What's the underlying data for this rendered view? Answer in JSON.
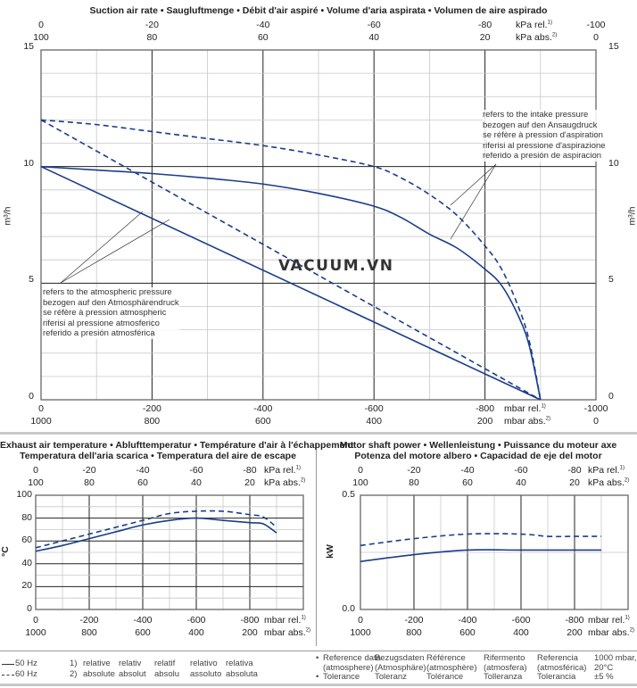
{
  "colors": {
    "curve": "#1a3c8c",
    "grid_minor": "#c8c8c8",
    "grid_major": "#222222",
    "separator": "#c8c8c8"
  },
  "watermark": "VACUUM.VN",
  "chart_data": [
    {
      "type": "line",
      "title": "Suction air rate  •  Saugluftmenge  •  Débit d'air aspiré  •  Volume d'aria aspirata  •  Volumen de aire aspirado",
      "ylabel": "m³/h",
      "ylim": [
        0,
        15
      ],
      "yticks": [
        "0",
        "5",
        "10",
        "15"
      ],
      "xlim": [
        0,
        -1000
      ],
      "x_axis_bottom": {
        "rel_ticks": [
          "0",
          "-200",
          "-400",
          "-600",
          "-800",
          "-1000"
        ],
        "abs_ticks": [
          "1000",
          "800",
          "600",
          "400",
          "200",
          "0"
        ],
        "rel_unit": "mbar rel.",
        "abs_unit": "mbar abs.",
        "rel_sup": "1)",
        "abs_sup": "2)"
      },
      "x_axis_top": {
        "rel_ticks": [
          "0",
          "-20",
          "-40",
          "-60",
          "-80",
          "-100"
        ],
        "abs_ticks": [
          "100",
          "80",
          "60",
          "40",
          "20",
          "0"
        ],
        "rel_unit": "kPa rel.",
        "abs_unit": "kPa abs.",
        "rel_sup": "1)",
        "abs_sup": "2)"
      },
      "grid": true,
      "annotations": {
        "intake": [
          "refers to the intake pressure",
          "bezogen auf den Ansaugdruck",
          "se réfère à pression d'aspiration",
          "riferisi al pressione d'aspirazione",
          "referido a presión de aspiracion"
        ],
        "atmospheric": [
          "refers to the atmospheric pressure",
          "bezogen auf den Atmosphärendruck",
          "se réfère à pression atmospheric",
          "riferisi al pressione atmosferico",
          "referido a presión atmosférica"
        ]
      },
      "series": [
        {
          "name": "50 Hz (intake pressure)",
          "style": "solid",
          "x": [
            0,
            -100,
            -200,
            -300,
            -400,
            -500,
            -600,
            -650,
            -700,
            -750,
            -800,
            -830,
            -860,
            -880,
            -900
          ],
          "y": [
            10,
            9.85,
            9.7,
            9.5,
            9.25,
            8.85,
            8.3,
            7.8,
            7.1,
            6.5,
            5.6,
            4.9,
            3.6,
            2.3,
            0
          ]
        },
        {
          "name": "60 Hz (intake pressure)",
          "style": "dashed",
          "x": [
            0,
            -100,
            -200,
            -300,
            -400,
            -500,
            -600,
            -650,
            -700,
            -750,
            -800,
            -830,
            -860,
            -880,
            -900
          ],
          "y": [
            12,
            11.8,
            11.5,
            11.2,
            10.9,
            10.5,
            10.0,
            9.5,
            8.8,
            7.9,
            6.6,
            5.6,
            4.0,
            2.5,
            0
          ]
        },
        {
          "name": "50 Hz (atmospheric pressure)",
          "style": "solid",
          "x": [
            0,
            -900
          ],
          "y": [
            10,
            0
          ]
        },
        {
          "name": "60 Hz (atmospheric pressure)",
          "style": "dashed",
          "x": [
            0,
            -900
          ],
          "y": [
            12,
            0
          ]
        }
      ]
    },
    {
      "type": "line",
      "title_lines": [
        "Exhaust air temperature  •  Ablufttemperatur  •  Température d'air à l'échappement",
        "Temperatura dell'aria scarica  •  Temperatura del aire de escape"
      ],
      "ylabel": "°C",
      "ylim": [
        0,
        100
      ],
      "yticks": [
        "0",
        "20",
        "40",
        "60",
        "80",
        "100"
      ],
      "xlim": [
        0,
        -1000
      ],
      "x_axis_bottom": {
        "rel_ticks": [
          "0",
          "-200",
          "-400",
          "-600",
          "-800"
        ],
        "abs_ticks": [
          "1000",
          "800",
          "600",
          "400",
          "200"
        ],
        "rel_unit": "mbar rel.",
        "abs_unit": "mbar abs.",
        "rel_sup": "1)",
        "abs_sup": "2)"
      },
      "x_axis_top": {
        "rel_ticks": [
          "0",
          "-20",
          "-40",
          "-60",
          "-80"
        ],
        "abs_ticks": [
          "100",
          "80",
          "60",
          "40",
          "20"
        ],
        "rel_unit": "kPa rel.",
        "abs_unit": "kPa abs.",
        "rel_sup": "1)",
        "abs_sup": "2)"
      },
      "grid": true,
      "series": [
        {
          "name": "50 Hz",
          "style": "solid",
          "x": [
            0,
            -100,
            -200,
            -300,
            -400,
            -500,
            -600,
            -700,
            -800,
            -850,
            -900
          ],
          "y": [
            51,
            56,
            62,
            68,
            74,
            78,
            80,
            78,
            76,
            75,
            67
          ]
        },
        {
          "name": "60 Hz",
          "style": "dashed",
          "x": [
            0,
            -100,
            -200,
            -300,
            -400,
            -500,
            -600,
            -700,
            -800,
            -850,
            -900
          ],
          "y": [
            54,
            60,
            66,
            72,
            78,
            84,
            86,
            86,
            83,
            81,
            72
          ]
        }
      ]
    },
    {
      "type": "line",
      "title_lines": [
        "Motor shaft power  •  Wellenleistung  •  Puissance du moteur axe",
        "Potenza del motore albero  •  Capacidad de eje del motor"
      ],
      "ylabel": "kW",
      "ylim": [
        0,
        0.5
      ],
      "yticks": [
        "0.0",
        "0.5"
      ],
      "xlim": [
        0,
        -1000
      ],
      "x_axis_bottom": {
        "rel_ticks": [
          "0",
          "-200",
          "-400",
          "-600",
          "-800"
        ],
        "abs_ticks": [
          "1000",
          "800",
          "600",
          "400",
          "200"
        ],
        "rel_unit": "mbar rel.",
        "abs_unit": "mbar abs.",
        "rel_sup": "1)",
        "abs_sup": "2)"
      },
      "x_axis_top": {
        "rel_ticks": [
          "0",
          "-20",
          "-40",
          "-60",
          "-80"
        ],
        "abs_ticks": [
          "100",
          "80",
          "60",
          "40",
          "20"
        ],
        "rel_unit": "kPa rel.",
        "abs_unit": "kPa abs.",
        "rel_sup": "1)",
        "abs_sup": "2)"
      },
      "grid": true,
      "series": [
        {
          "name": "50 Hz",
          "style": "solid",
          "x": [
            0,
            -200,
            -400,
            -600,
            -800,
            -900
          ],
          "y": [
            0.21,
            0.24,
            0.26,
            0.26,
            0.26,
            0.26
          ]
        },
        {
          "name": "60 Hz",
          "style": "dashed",
          "x": [
            0,
            -200,
            -400,
            -600,
            -700,
            -800,
            -900
          ],
          "y": [
            0.28,
            0.31,
            0.33,
            0.33,
            0.32,
            0.32,
            0.32
          ]
        }
      ]
    }
  ],
  "legend": {
    "series": [
      {
        "label": "50 Hz",
        "style": "solid"
      },
      {
        "label": "60 Hz",
        "style": "dashed"
      }
    ],
    "footnotes": [
      {
        "num": "1)",
        "words": [
          "relative",
          "relativ",
          "relatif",
          "relativo",
          "relativa"
        ]
      },
      {
        "num": "2)",
        "words": [
          "absolute",
          "absolut",
          "absolu",
          "assoluto",
          "absoluta"
        ]
      }
    ],
    "reference": {
      "bullet": "•",
      "row1": [
        "Reference data",
        "Bezugsdaten",
        "Référence",
        "Rifermento",
        "Referencia",
        "1000 mbar,"
      ],
      "row2": [
        "(atmosphere)",
        "(Atmosphäre)",
        "(atmosphère)",
        "(atmosfera)",
        "(atmosférica)",
        "20°C"
      ],
      "row3": [
        "Tolerance",
        "Toleranz",
        "Tolérance",
        "Tolleranza",
        "Tolerancia",
        "±5 %"
      ]
    }
  }
}
